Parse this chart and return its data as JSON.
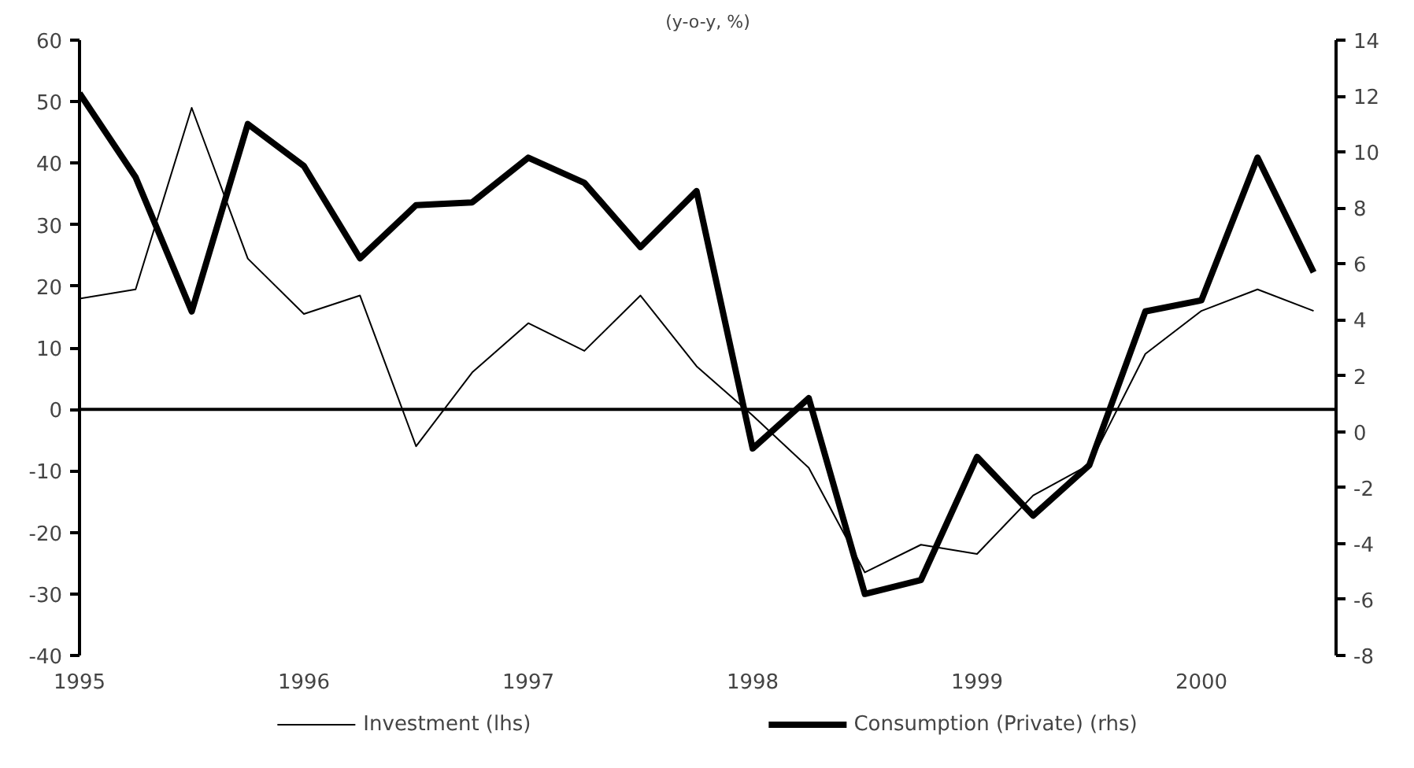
{
  "chart_data": {
    "type": "line",
    "title": "(y-o-y, %)",
    "x": [
      1995,
      1995.25,
      1995.5,
      1995.75,
      1996,
      1996.25,
      1996.5,
      1996.75,
      1997,
      1997.25,
      1997.5,
      1997.75,
      1998,
      1998.25,
      1998.5,
      1998.75,
      1999,
      1999.25,
      1999.5,
      1999.75,
      2000,
      2000.25,
      2000.5
    ],
    "series": [
      {
        "name": "Investment (lhs)",
        "color": "#000000",
        "values": [
          18,
          19.5,
          49,
          24.5,
          15.5,
          18.5,
          -6,
          6,
          14,
          9.5,
          18.5,
          7,
          -1,
          -9.5,
          -26.5,
          -22,
          -23.5,
          -14,
          -9,
          9,
          16,
          19.5,
          16
        ]
      },
      {
        "name": "Consumption (Private) (rhs)",
        "color": "#000000",
        "axis": "y2",
        "values": [
          12.1,
          9.1,
          4.3,
          11.0,
          9.5,
          6.2,
          8.1,
          8.2,
          9.8,
          8.9,
          6.6,
          8.6,
          -0.6,
          1.2,
          -5.8,
          -5.3,
          -0.9,
          -3.0,
          -1.2,
          4.3,
          4.7,
          9.8,
          5.7
        ]
      }
    ],
    "xlim": [
      1995,
      2000.6
    ],
    "xticks": [
      1995,
      1996,
      1997,
      1998,
      1999,
      2000
    ],
    "ylim": [
      -40,
      60
    ],
    "yticks": [
      -40,
      -30,
      -20,
      -10,
      0,
      10,
      20,
      30,
      40,
      50,
      60
    ],
    "y2lim": [
      -8,
      14
    ],
    "y2ticks": [
      -8,
      -6,
      -4,
      -2,
      0,
      2,
      4,
      6,
      8,
      10,
      12,
      14
    ],
    "ref_lines": [
      {
        "axis": "y",
        "value": 0,
        "color": "#000000"
      }
    ],
    "grid": false,
    "legend": "bottom",
    "marker": "none",
    "line_style": "solid"
  }
}
